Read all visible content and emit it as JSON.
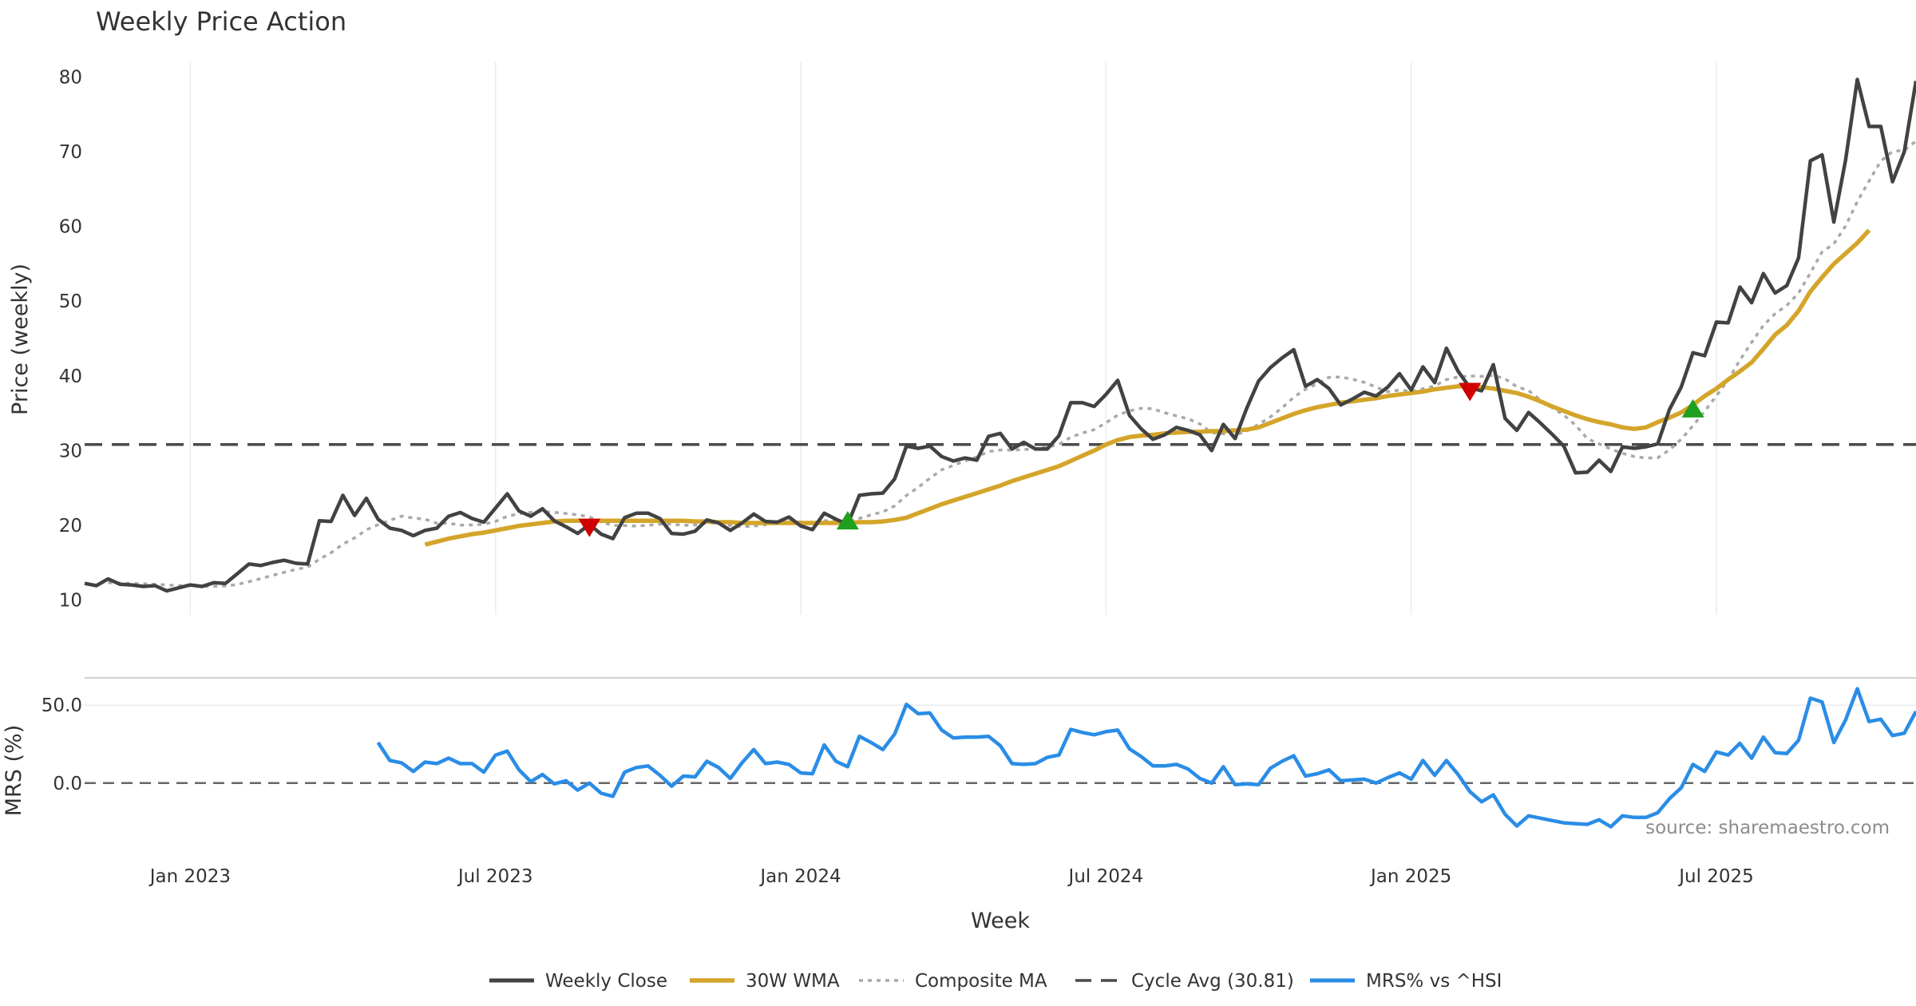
{
  "chart_data": {
    "type": "line",
    "title": "Weekly Price Action",
    "source_note": "source: sharemaestro.com",
    "xlabel": "Week",
    "x_ticks": [
      {
        "label": "Jan 2023",
        "week": 13
      },
      {
        "label": "Jul 2023",
        "week": 39
      },
      {
        "label": "Jan 2024",
        "week": 65
      },
      {
        "label": "Jul 2024",
        "week": 91
      },
      {
        "label": "Jan 2025",
        "week": 117
      },
      {
        "label": "Jul 2025",
        "week": 143
      }
    ],
    "week_range": [
      4,
      160
    ],
    "price_panel": {
      "ylabel": "Price (weekly)",
      "ylim": [
        8,
        82
      ],
      "yticks": [
        "10",
        "20",
        "30",
        "40",
        "50",
        "60",
        "70",
        "80"
      ],
      "weekly_close": [
        12.2,
        11.9,
        12.8,
        12.1,
        12.0,
        11.8,
        11.9,
        11.2,
        11.6,
        12.0,
        11.8,
        12.3,
        12.2,
        13.5,
        14.8,
        14.6,
        15.0,
        15.3,
        14.9,
        14.8,
        20.6,
        20.5,
        24.0,
        21.3,
        23.6,
        20.8,
        19.6,
        19.3,
        18.6,
        19.3,
        19.6,
        21.2,
        21.7,
        20.9,
        20.4,
        22.3,
        24.2,
        21.9,
        21.2,
        22.2,
        20.6,
        19.8,
        18.9,
        20.1,
        18.8,
        18.2,
        21.0,
        21.6,
        21.6,
        20.9,
        18.9,
        18.8,
        19.2,
        20.7,
        20.3,
        19.3,
        20.3,
        21.5,
        20.5,
        20.4,
        21.1,
        19.9,
        19.4,
        21.6,
        20.8,
        20.1,
        24.0,
        24.2,
        24.3,
        26.2,
        30.6,
        30.3,
        30.6,
        29.2,
        28.6,
        29.0,
        28.7,
        31.9,
        32.3,
        30.2,
        31.1,
        30.2,
        30.2,
        32.0,
        36.4,
        36.4,
        35.9,
        37.5,
        39.4,
        34.7,
        32.9,
        31.5,
        32.1,
        33.1,
        32.7,
        32.1,
        30.0,
        33.5,
        31.6,
        35.7,
        39.3,
        41.1,
        42.4,
        43.5,
        38.6,
        39.5,
        38.3,
        36.1,
        36.9,
        37.8,
        37.3,
        38.5,
        40.3,
        38.1,
        41.2,
        39.1,
        43.7,
        40.6,
        38.4,
        38.0,
        41.5,
        34.3,
        32.7,
        35.1,
        33.7,
        32.2,
        30.6,
        27.0,
        27.1,
        28.7,
        27.2,
        30.5,
        30.3,
        30.5,
        30.9,
        35.5,
        38.5,
        43.1,
        42.7,
        47.2,
        47.1,
        51.9,
        49.8,
        53.7,
        51.1,
        52.1,
        55.8,
        68.8,
        69.6,
        60.6,
        68.9,
        79.7,
        73.4,
        73.4,
        66.0,
        70.0,
        79.5
      ],
      "wma_30w_start_week": 33,
      "wma_30w": [
        17.4,
        17.8,
        18.2,
        18.5,
        18.8,
        19.0,
        19.3,
        19.6,
        19.9,
        20.1,
        20.3,
        20.5,
        20.6,
        20.6,
        20.6,
        20.6,
        20.6,
        20.6,
        20.6,
        20.6,
        20.6,
        20.6,
        20.6,
        20.5,
        20.5,
        20.4,
        20.4,
        20.3,
        20.3,
        20.3,
        20.3,
        20.3,
        20.3,
        20.3,
        20.3,
        20.3,
        20.3,
        20.4,
        20.4,
        20.5,
        20.7,
        21.0,
        21.6,
        22.2,
        22.8,
        23.3,
        23.8,
        24.3,
        24.8,
        25.3,
        25.9,
        26.4,
        26.9,
        27.4,
        27.9,
        28.6,
        29.3,
        30.0,
        30.8,
        31.4,
        31.8,
        32.0,
        32.1,
        32.3,
        32.4,
        32.5,
        32.5,
        32.6,
        32.6,
        32.7,
        32.8,
        33.1,
        33.7,
        34.3,
        34.9,
        35.4,
        35.8,
        36.1,
        36.4,
        36.6,
        36.8,
        37.0,
        37.3,
        37.5,
        37.7,
        37.9,
        38.2,
        38.4,
        38.6,
        38.6,
        38.5,
        38.3,
        38.0,
        37.7,
        37.2,
        36.6,
        35.9,
        35.3,
        34.7,
        34.2,
        33.8,
        33.5,
        33.1,
        32.9,
        33.1,
        33.8,
        34.4,
        35.1,
        36.1,
        37.3,
        38.3,
        39.5,
        40.6,
        41.8,
        43.6,
        45.5,
        46.8,
        48.7,
        51.3,
        53.2,
        55.0,
        56.4,
        57.8,
        59.5
      ]
    },
    "mrs_panel": {
      "ylabel": "MRS (%)",
      "ylim": [
        -38,
        67
      ],
      "yticks": [
        "0.0",
        "50.0"
      ],
      "series_start_week": 29,
      "mrs_values": [
        26.0,
        14.5,
        13.0,
        7.5,
        13.5,
        12.5,
        16.0,
        12.5,
        12.5,
        7.0,
        18.0,
        20.5,
        8.5,
        1.0,
        5.5,
        -0.5,
        1.5,
        -4.5,
        0.0,
        -6.5,
        -8.5,
        7.0,
        10.0,
        11.0,
        5.0,
        -2.0,
        4.5,
        4.0,
        14.0,
        10.0,
        3.0,
        13.0,
        21.5,
        12.5,
        13.5,
        12.0,
        6.5,
        6.0,
        24.5,
        14.0,
        10.5,
        30.0,
        26.0,
        21.5,
        31.5,
        50.5,
        44.5,
        45.0,
        34.0,
        29.0,
        29.5,
        29.5,
        30.0,
        24.0,
        12.5,
        12.0,
        12.5,
        16.5,
        18.0,
        34.5,
        32.5,
        31.0,
        33.0,
        34.0,
        22.0,
        17.0,
        11.0,
        11.0,
        12.0,
        9.0,
        3.0,
        0.0,
        10.5,
        -1.0,
        -0.5,
        -1.0,
        9.5,
        14.0,
        17.5,
        4.5,
        6.0,
        8.5,
        1.5,
        2.0,
        2.5,
        0.0,
        3.5,
        6.5,
        2.5,
        14.5,
        5.0,
        14.5,
        5.5,
        -5.5,
        -12.0,
        -7.5,
        -20.0,
        -27.5,
        -21.0,
        -22.5,
        -24.0,
        -25.5,
        -26.0,
        -26.5,
        -23.5,
        -28.0,
        -21.0,
        -22.0,
        -22.0,
        -19.0,
        -10.0,
        -3.0,
        12.0,
        7.5,
        20.0,
        18.0,
        25.5,
        16.0,
        29.5,
        19.5,
        19.0,
        27.5,
        54.5,
        52.0,
        26.0,
        40.5,
        60.5,
        39.5,
        41.0,
        30.5,
        32.0,
        46.0
      ]
    },
    "cycle_avg": 30.81,
    "signals": {
      "buy": [
        {
          "week": 69,
          "price": 20.5
        },
        {
          "week": 141,
          "price": 35.5
        }
      ],
      "sell": [
        {
          "week": 47,
          "price": 19.8
        },
        {
          "week": 122,
          "price": 38.0
        }
      ]
    },
    "legend": [
      {
        "label": "Weekly Close",
        "style": "weekly-close"
      },
      {
        "label": "30W WMA",
        "style": "wma"
      },
      {
        "label": "Composite MA",
        "style": "composite"
      },
      {
        "label": "Cycle Avg (30.81)",
        "style": "cycle-avg"
      },
      {
        "label": "MRS% vs ^HSI",
        "style": "mrs"
      }
    ],
    "colors": {
      "weekly_close": "#424242",
      "wma": "#d4a52a",
      "composite_ma": "#a9a9a9",
      "cycle_avg": "#4a4a4a",
      "mrs": "#2a8de6",
      "mrs_zero": "#666666",
      "buy": "#1fa01f",
      "sell": "#d00000",
      "grid": "#e9ecef",
      "panel_divider": "#cfcfcf"
    }
  }
}
